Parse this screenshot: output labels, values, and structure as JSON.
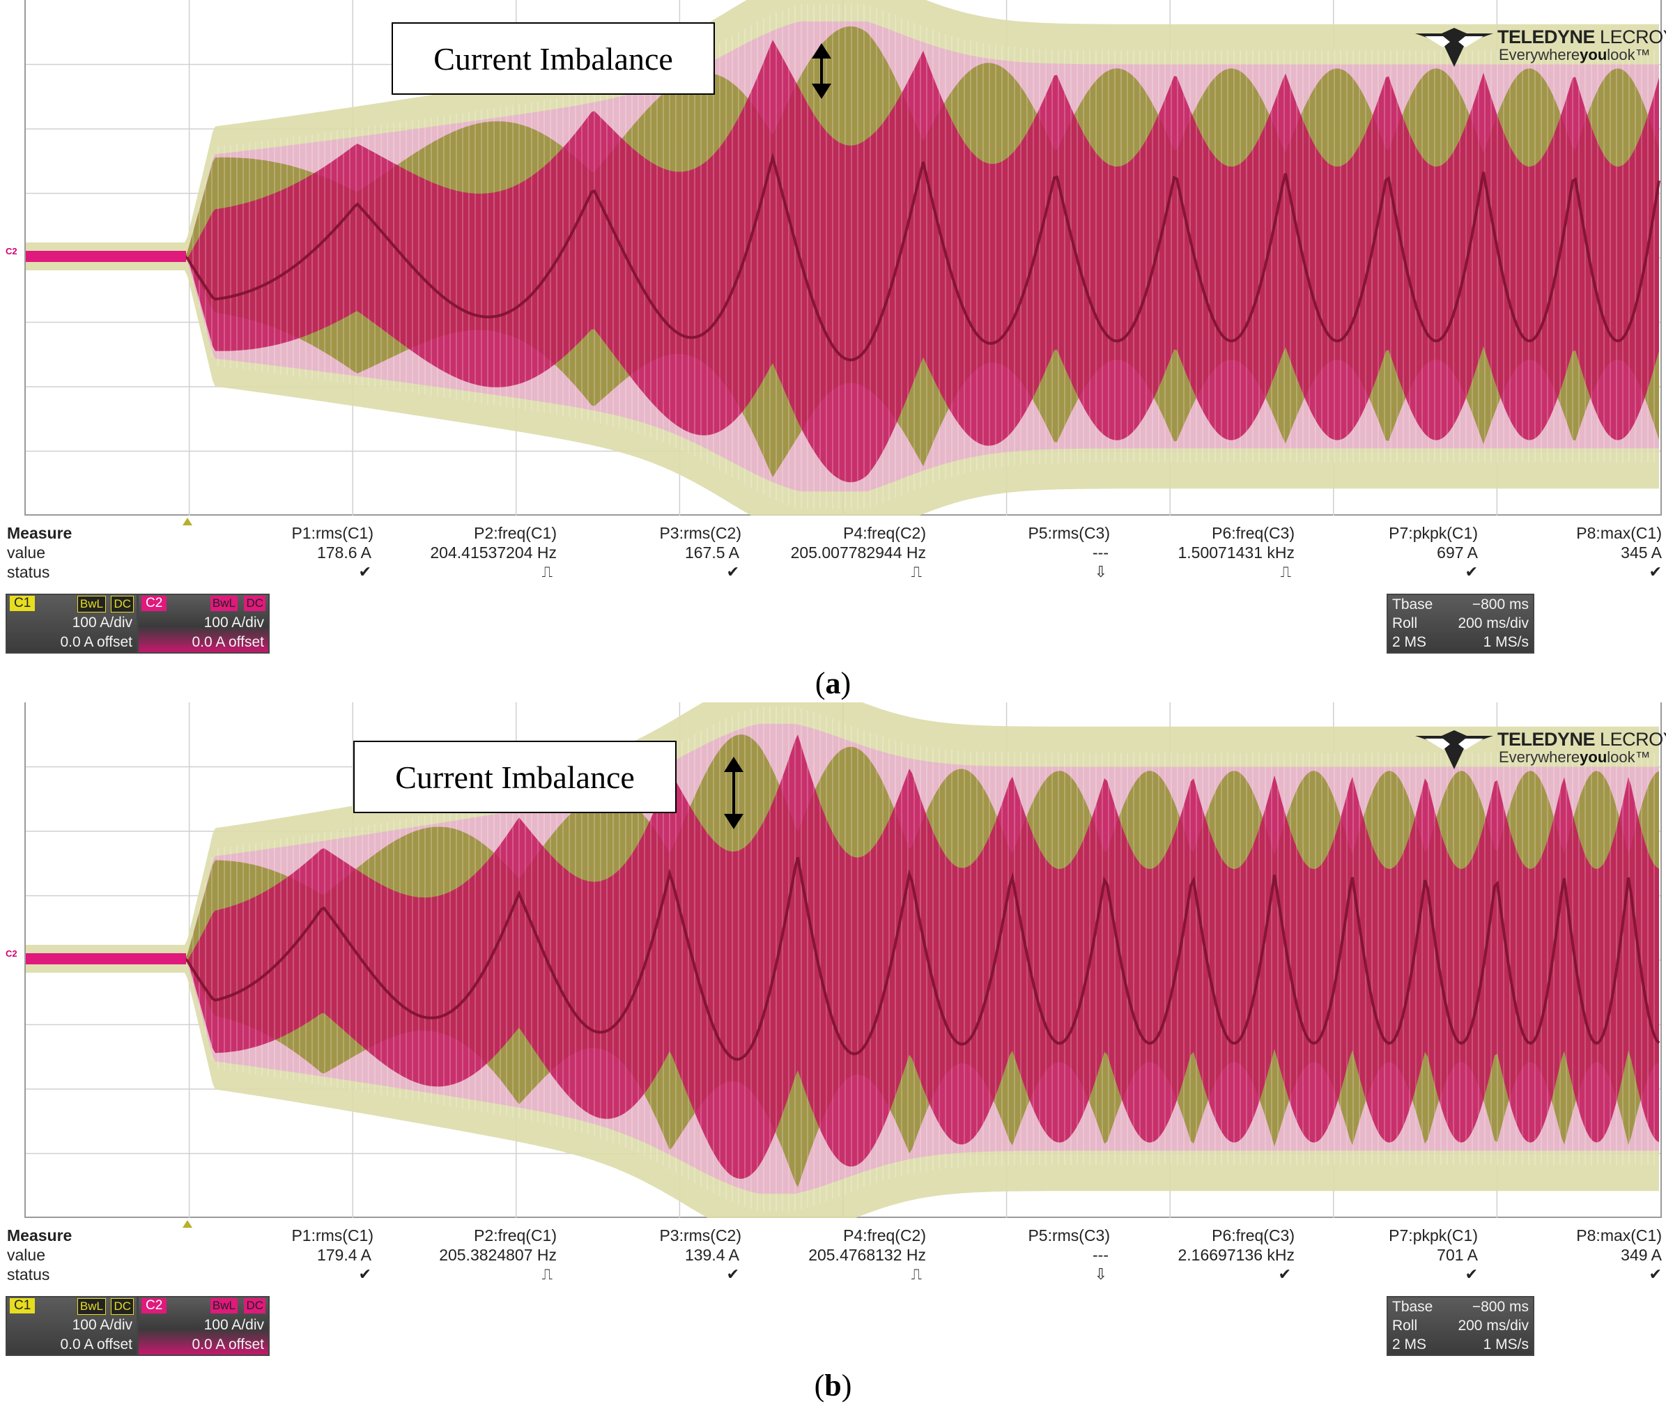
{
  "panels": [
    {
      "id": "a",
      "caption": "(a)",
      "caption_letter": "a",
      "annotation": "Current Imbalance",
      "channel_marker": "C2",
      "logo": {
        "brand": "TELEDYNE LECROY",
        "brand_bold": "TELEDYNE",
        "brand_light": "LECROY",
        "tagline_pre": "Everywhere",
        "tagline_bold": "you",
        "tagline_post": "look",
        "tm": "™"
      },
      "measure": {
        "header_label": "Measure",
        "value_label": "value",
        "status_label": "status",
        "columns": [
          {
            "param": "P1:rms(C1)",
            "value": "178.6 A",
            "status": "✔"
          },
          {
            "param": "P2:freq(C1)",
            "value": "204.41537204 Hz",
            "status": "⎍"
          },
          {
            "param": "P3:rms(C2)",
            "value": "167.5 A",
            "status": "✔"
          },
          {
            "param": "P4:freq(C2)",
            "value": "205.007782944 Hz",
            "status": "⎍"
          },
          {
            "param": "P5:rms(C3)",
            "value": "---",
            "status": "⇩"
          },
          {
            "param": "P6:freq(C3)",
            "value": "1.50071431 kHz",
            "status": "⎍"
          },
          {
            "param": "P7:pkpk(C1)",
            "value": "697 A",
            "status": "✔"
          },
          {
            "param": "P8:max(C1)",
            "value": "345 A",
            "status": "✔"
          }
        ]
      },
      "c1": {
        "tag": "C1",
        "bw": "BwL",
        "dc": "DC",
        "scale": "100 A/div",
        "offset": "0.0 A offset"
      },
      "c2": {
        "tag": "C2",
        "bw": "BwL",
        "dc": "DC",
        "scale": "100 A/div",
        "offset": "0.0 A offset"
      },
      "timebase": {
        "tbase_label": "Tbase",
        "tbase_value": "−800 ms",
        "mode": "Roll",
        "tdiv": "200 ms/div",
        "samples": "2 MS",
        "rate": "1 MS/s"
      }
    },
    {
      "id": "b",
      "caption": "(b)",
      "caption_letter": "b",
      "annotation": "Current Imbalance",
      "channel_marker": "C2",
      "logo": {
        "brand": "TELEDYNE LECROY",
        "brand_bold": "TELEDYNE",
        "brand_light": "LECROY",
        "tagline_pre": "Everywhere",
        "tagline_bold": "you",
        "tagline_post": "look",
        "tm": "™"
      },
      "measure": {
        "header_label": "Measure",
        "value_label": "value",
        "status_label": "status",
        "columns": [
          {
            "param": "P1:rms(C1)",
            "value": "179.4 A",
            "status": "✔"
          },
          {
            "param": "P2:freq(C1)",
            "value": "205.3824807 Hz",
            "status": "⎍"
          },
          {
            "param": "P3:rms(C2)",
            "value": "139.4 A",
            "status": "✔"
          },
          {
            "param": "P4:freq(C2)",
            "value": "205.4768132 Hz",
            "status": "⎍"
          },
          {
            "param": "P5:rms(C3)",
            "value": "---",
            "status": "⇩"
          },
          {
            "param": "P6:freq(C3)",
            "value": "2.16697136 kHz",
            "status": "✔"
          },
          {
            "param": "P7:pkpk(C1)",
            "value": "701 A",
            "status": "✔"
          },
          {
            "param": "P8:max(C1)",
            "value": "349 A",
            "status": "✔"
          }
        ]
      },
      "c1": {
        "tag": "C1",
        "bw": "BwL",
        "dc": "DC",
        "scale": "100 A/div",
        "offset": "0.0 A offset"
      },
      "c2": {
        "tag": "C2",
        "bw": "BwL",
        "dc": "DC",
        "scale": "100 A/div",
        "offset": "0.0 A offset"
      },
      "timebase": {
        "tbase_label": "Tbase",
        "tbase_value": "−800 ms",
        "mode": "Roll",
        "tdiv": "200 ms/div",
        "samples": "2 MS",
        "rate": "1 MS/s"
      }
    }
  ],
  "colors": {
    "c1_trace": "#8a8a1e",
    "c1_light": "#dcdcaa",
    "c2_trace": "#c2185b",
    "c2_light": "#e8b4cb",
    "c2_dark": "#7a0f2e",
    "grid": "#d0d0d0"
  }
}
